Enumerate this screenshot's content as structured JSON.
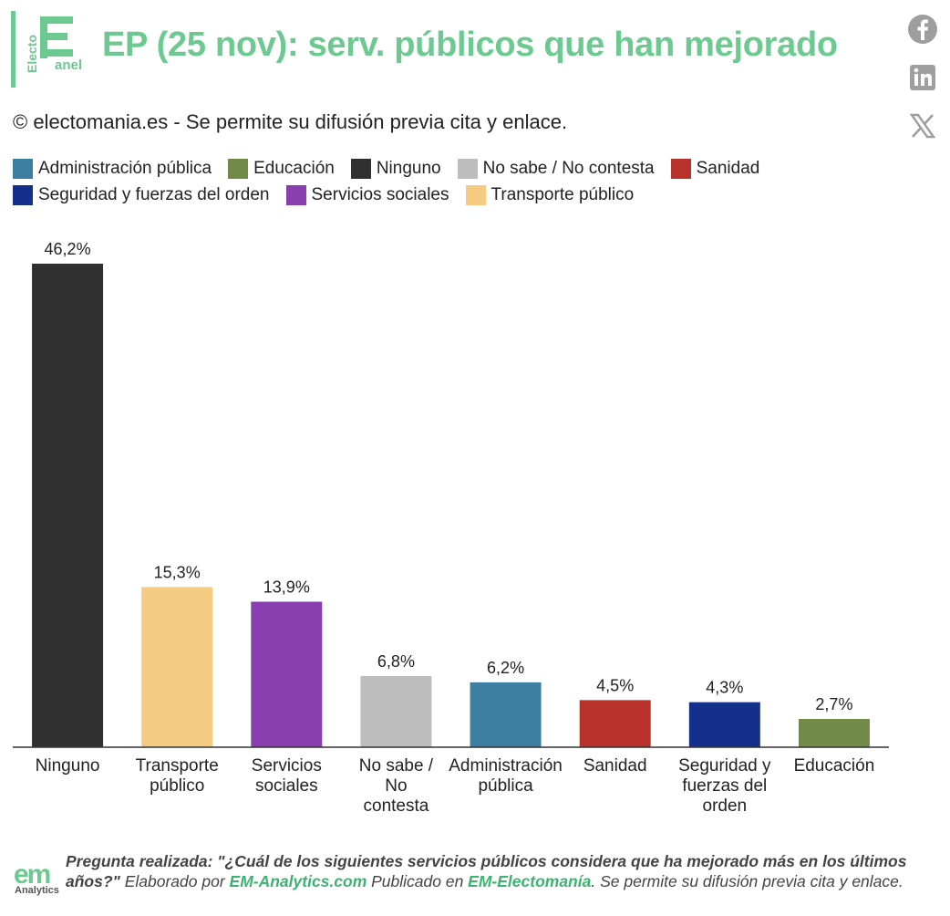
{
  "header": {
    "title": "EP (25 nov): serv. públicos que han mejorado",
    "subtitle": "© electomania.es - Se permite su difusión previa cita y enlace.",
    "logo_text_top": "Electo",
    "logo_text_bottom": "anel",
    "logo_name": "electopanel-logo"
  },
  "social": [
    {
      "name": "facebook-icon"
    },
    {
      "name": "linkedin-icon"
    },
    {
      "name": "x-icon"
    }
  ],
  "colors": {
    "accent": "#6cc98f",
    "Administración pública": "#3d7fa0",
    "Educación": "#728a47",
    "Ninguno": "#2f2f2f",
    "No sabe / No contesta": "#bdbdbd",
    "Sanidad": "#b9312b",
    "Seguridad y fuerzas del orden": "#14308c",
    "Servicios sociales": "#8a3fb0",
    "Transporte público": "#f5ca82"
  },
  "legend": [
    [
      "Administración pública",
      "Educación",
      "Ninguno",
      "No sabe / No contesta",
      "Sanidad"
    ],
    [
      "Seguridad y fuerzas del orden",
      "Servicios sociales",
      "Transporte público"
    ]
  ],
  "chart_data": {
    "type": "bar",
    "title": "EP (25 nov): serv. públicos que han mejorado",
    "categories": [
      "Ninguno",
      "Transporte público",
      "Servicios sociales",
      "No sabe / No contesta",
      "Administración pública",
      "Sanidad",
      "Seguridad y fuerzas del orden",
      "Educación"
    ],
    "category_lines": [
      [
        "Ninguno"
      ],
      [
        "Transporte",
        "público"
      ],
      [
        "Servicios",
        "sociales"
      ],
      [
        "No sabe /",
        "No",
        "contesta"
      ],
      [
        "Administración",
        "pública"
      ],
      [
        "Sanidad"
      ],
      [
        "Seguridad y",
        "fuerzas del",
        "orden"
      ],
      [
        "Educación"
      ]
    ],
    "values": [
      46.2,
      15.3,
      13.9,
      6.8,
      6.2,
      4.5,
      4.3,
      2.7
    ],
    "labels": [
      "46,2%",
      "15,3%",
      "13,9%",
      "6,8%",
      "6,2%",
      "4,5%",
      "4,3%",
      "2,7%"
    ],
    "ylim": [
      0,
      46.2
    ],
    "grid": false,
    "legend_position": "top"
  },
  "footer": {
    "logo_text": "em",
    "logo_sub": "Analytics",
    "question": "Pregunta realizada: \"¿Cuál de los siguientes servicios públicos considera que ha mejorado más en los últimos años?\"",
    "made_by_prefix": " Elaborado por ",
    "made_by_link": "EM-Analytics.com",
    "published_prefix": " Publicado en ",
    "published_link": "EM-Electomanía",
    "suffix": ". Se permite su difusión previa cita y enlace."
  }
}
